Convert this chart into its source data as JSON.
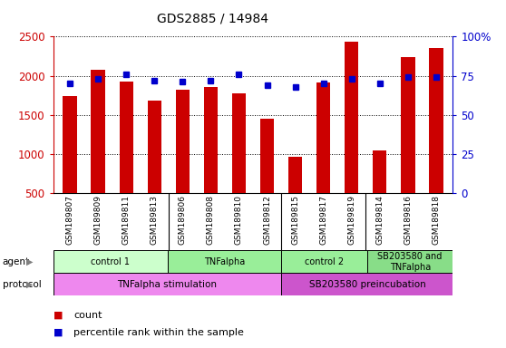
{
  "title": "GDS2885 / 14984",
  "samples": [
    "GSM189807",
    "GSM189809",
    "GSM189811",
    "GSM189813",
    "GSM189806",
    "GSM189808",
    "GSM189810",
    "GSM189812",
    "GSM189815",
    "GSM189817",
    "GSM189819",
    "GSM189814",
    "GSM189816",
    "GSM189818"
  ],
  "counts": [
    1740,
    2080,
    1930,
    1680,
    1820,
    1860,
    1780,
    1450,
    960,
    1910,
    2430,
    1040,
    2240,
    2350
  ],
  "percentiles": [
    70,
    73,
    76,
    72,
    71,
    72,
    76,
    69,
    68,
    70,
    73,
    70,
    74,
    74
  ],
  "ylim_left": [
    500,
    2500
  ],
  "ylim_right": [
    0,
    100
  ],
  "yticks_left": [
    500,
    1000,
    1500,
    2000,
    2500
  ],
  "yticks_right": [
    0,
    25,
    50,
    75,
    100
  ],
  "yticklabels_right": [
    "0",
    "25",
    "50",
    "75",
    "100%"
  ],
  "agent_groups": [
    {
      "label": "control 1",
      "start": 0,
      "end": 4,
      "color": "#ccffcc"
    },
    {
      "label": "TNFalpha",
      "start": 4,
      "end": 8,
      "color": "#99ee99"
    },
    {
      "label": "control 2",
      "start": 8,
      "end": 11,
      "color": "#99ee99"
    },
    {
      "label": "SB203580 and\nTNFalpha",
      "start": 11,
      "end": 14,
      "color": "#88dd88"
    }
  ],
  "protocol_groups": [
    {
      "label": "TNFalpha stimulation",
      "start": 0,
      "end": 8,
      "color": "#ee88ee"
    },
    {
      "label": "SB203580 preincubation",
      "start": 8,
      "end": 14,
      "color": "#cc55cc"
    }
  ],
  "bar_color": "#cc0000",
  "dot_color": "#0000cc",
  "bg_color": "#cccccc",
  "left_tick_color": "#cc0000",
  "right_tick_color": "#0000cc",
  "group_boundaries": [
    4,
    8,
    11
  ],
  "n_samples": 14
}
